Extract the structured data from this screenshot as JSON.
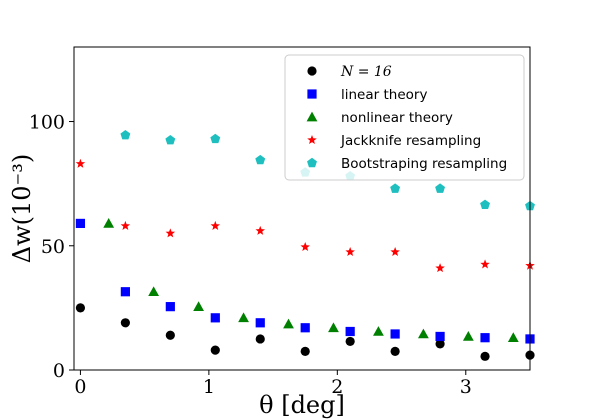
{
  "chart_data": {
    "type": "scatter",
    "xlabel": "θ [deg]",
    "ylabel": "Δw(10⁻³)",
    "xlim": [
      -0.05,
      3.5
    ],
    "ylim": [
      0,
      130
    ],
    "xticks": [
      0,
      1,
      2,
      3
    ],
    "yticks": [
      0,
      50,
      100
    ],
    "grid": false,
    "legend_placement": "top-right",
    "series": [
      {
        "name": "N = 16",
        "marker": "circle",
        "color": "#000000",
        "x": [
          0.0,
          0.35,
          0.7,
          1.05,
          1.4,
          1.75,
          2.1,
          2.45,
          2.8,
          3.15,
          3.5
        ],
        "y": [
          25,
          19,
          14,
          8,
          12.5,
          7.5,
          11.5,
          7.5,
          10.5,
          5.5,
          6
        ]
      },
      {
        "name": "linear theory",
        "marker": "square",
        "color": "#0000ff",
        "x": [
          0.0,
          0.35,
          0.7,
          1.05,
          1.4,
          1.75,
          2.1,
          2.45,
          2.8,
          3.15,
          3.5
        ],
        "y": [
          59,
          31.5,
          25.5,
          21,
          19,
          17,
          15.5,
          14.5,
          13.5,
          13,
          12.5
        ]
      },
      {
        "name": "nonlinear theory",
        "marker": "triangle",
        "color": "#008000",
        "x": [
          0.22,
          0.57,
          0.92,
          1.27,
          1.62,
          1.97,
          2.32,
          2.67,
          3.02,
          3.37
        ],
        "y": [
          59,
          31.5,
          25.5,
          21,
          18.5,
          17,
          15.5,
          14.5,
          13.5,
          13
        ]
      },
      {
        "name": "Jackknife resampling",
        "marker": "star",
        "color": "#ff0000",
        "x": [
          0.0,
          0.35,
          0.7,
          1.05,
          1.4,
          1.75,
          2.1,
          2.45,
          2.8,
          3.15,
          3.5
        ],
        "y": [
          83,
          58,
          55,
          58,
          56,
          49.5,
          47.5,
          47.5,
          41,
          42.5,
          42
        ]
      },
      {
        "name": "Bootstraping resampling",
        "marker": "pentagon",
        "color": "#1fbfbf",
        "x": [
          0.35,
          0.7,
          1.05,
          1.4,
          1.75,
          2.1,
          2.45,
          2.8,
          3.15,
          3.5
        ],
        "y": [
          94.5,
          92.5,
          93,
          84.5,
          79.5,
          78,
          73,
          73,
          66.5,
          66
        ]
      }
    ]
  }
}
